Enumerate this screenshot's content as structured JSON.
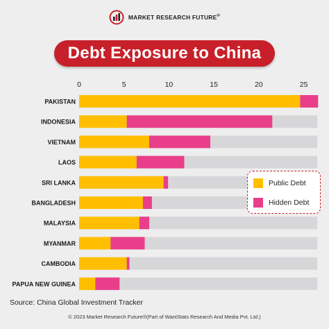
{
  "brand": {
    "name": "MARKET RESEARCH FUTURE",
    "mark": "®",
    "logo_icon": "bar-chart-globe-icon"
  },
  "title": "Debt Exposure to China",
  "colors": {
    "public": "#ffbf00",
    "hidden": "#e93f8a",
    "bar_bg": "#d7d7da",
    "title_bg": "#c8202a"
  },
  "legend": [
    {
      "label": "Public Debt",
      "color": "#ffbf00"
    },
    {
      "label": "Hidden Debt",
      "color": "#e93f8a"
    }
  ],
  "chart_data": {
    "type": "bar",
    "orientation": "horizontal",
    "stacked": true,
    "categories": [
      "PAKISTAN",
      "INDONESIA",
      "VIETNAM",
      "LAOS",
      "SRI LANKA",
      "BANGLADESH",
      "MALAYSIA",
      "MYANMAR",
      "CAMBODIA",
      "PAPUA NEW GUINEA"
    ],
    "series": [
      {
        "name": "Public Debt",
        "values": [
          24.6,
          5.3,
          7.8,
          6.4,
          9.4,
          7.1,
          6.7,
          3.5,
          5.3,
          1.8
        ]
      },
      {
        "name": "Hidden Debt",
        "values": [
          2.0,
          16.2,
          6.8,
          5.3,
          0.5,
          1.0,
          1.1,
          3.8,
          0.3,
          2.7
        ]
      }
    ],
    "xlim": [
      0,
      26.5
    ],
    "xticks": [
      "0",
      "5",
      "10",
      "15",
      "20",
      "25"
    ],
    "xtick_values": [
      0,
      5,
      10,
      15,
      20,
      25
    ],
    "grid": false,
    "legend_position": "right"
  },
  "source": "Source: China Global Investment Tracker",
  "footer": "© 2023 Market Research Future®(Part of WantStats Research And Media Pvt. Ltd.)"
}
